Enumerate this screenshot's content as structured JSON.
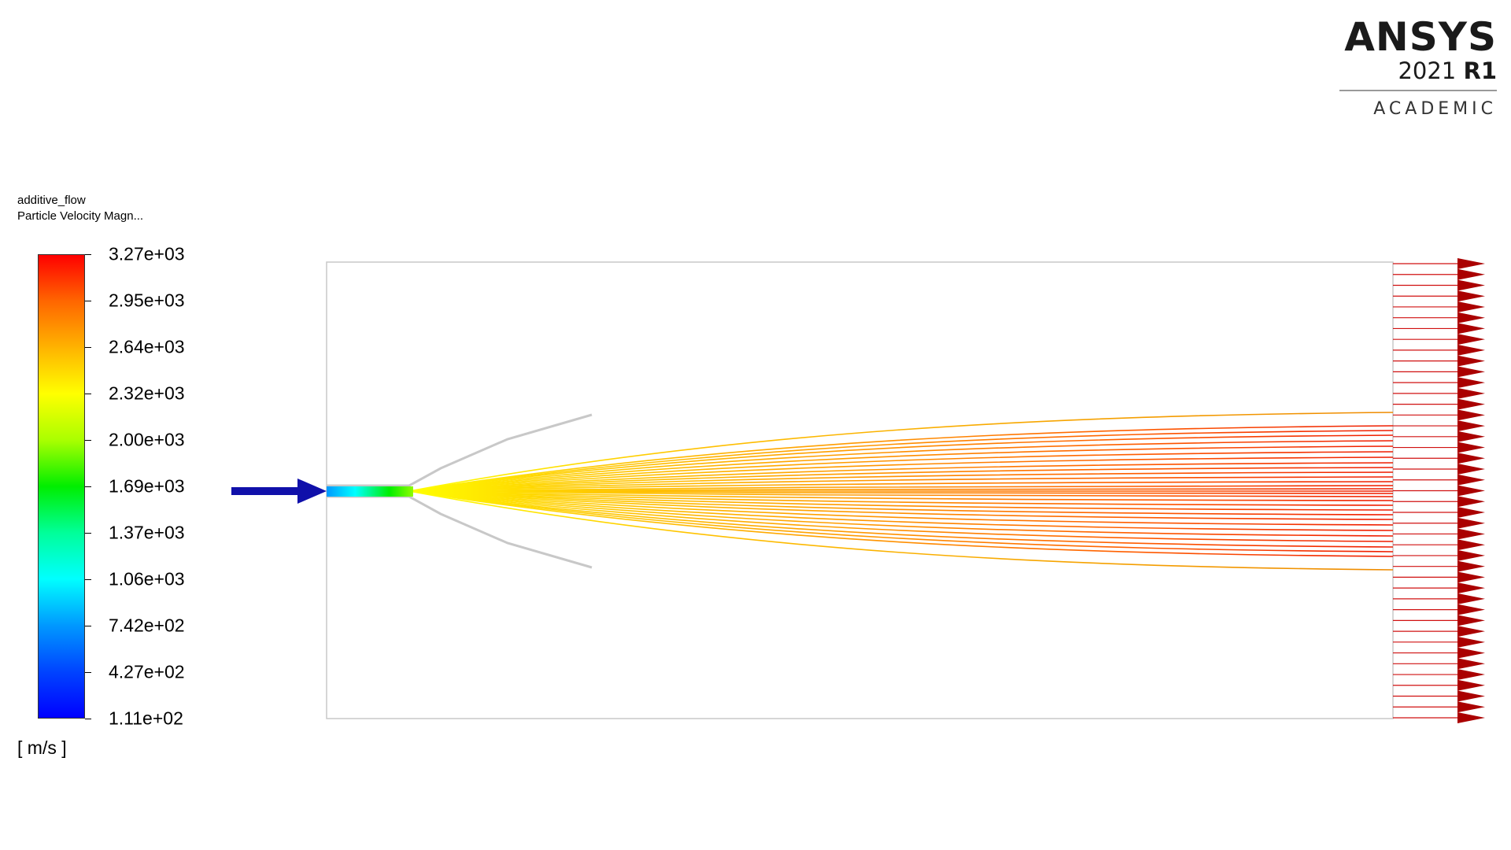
{
  "brand": {
    "name": "ANSYS",
    "year": "2021",
    "release": "R1",
    "edition": "ACADEMIC"
  },
  "legend": {
    "case_name": "additive_flow",
    "variable": "Particle Velocity Magn...",
    "unit": "[ m/s ]",
    "labels": [
      "3.27e+03",
      "2.95e+03",
      "2.64e+03",
      "2.32e+03",
      "2.00e+03",
      "1.69e+03",
      "1.37e+03",
      "1.06e+03",
      "7.42e+02",
      "4.27e+02",
      "1.11e+02"
    ],
    "colors": [
      "#ff0000",
      "#ff6600",
      "#ffb300",
      "#ffff00",
      "#aaff00",
      "#00ee00",
      "#00ff99",
      "#00ffff",
      "#0099ff",
      "#0044ff",
      "#0000ff"
    ],
    "min": 111,
    "max": 3270
  },
  "scene": {
    "domain_stroke": "#c8c8c8",
    "inlet_arrow_color": "#1010aa",
    "outlet_arrow_color": "#aa0000",
    "outlet_line_color": "#d01010",
    "nozzle_color": "#c8c8c8"
  }
}
